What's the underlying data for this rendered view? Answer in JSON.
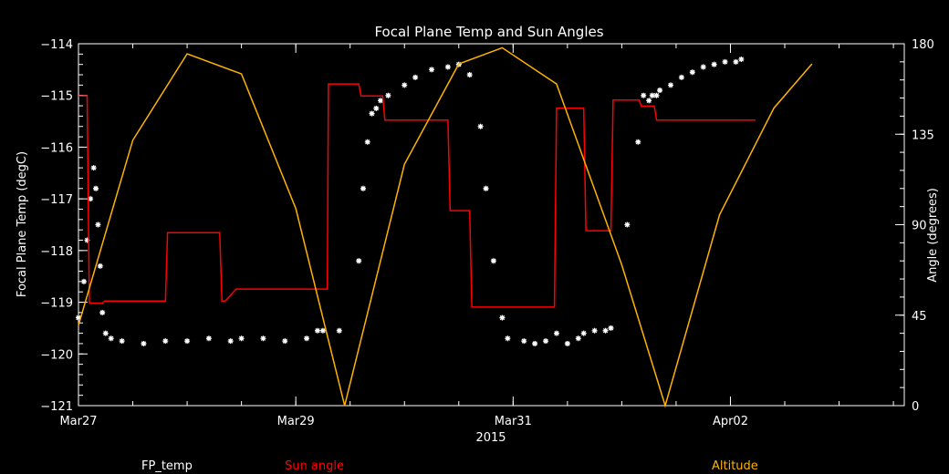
{
  "chart_data": {
    "type": "line",
    "title": "Focal Plane Temp and Sun Angles",
    "xlabel": "2015",
    "ylabel_left": "Focal Plane Temp (degC)",
    "ylabel_right": "Angle (degrees)",
    "x_unit": "days since Mar27 00:00 (2015)",
    "xlim": [
      0,
      7.6
    ],
    "ylim_left": [
      -121,
      -114
    ],
    "ylim_right": [
      0,
      180
    ],
    "x_ticks": [
      {
        "value": 0,
        "label": "Mar27"
      },
      {
        "value": 2,
        "label": "Mar29"
      },
      {
        "value": 4,
        "label": "Mar31"
      },
      {
        "value": 6,
        "label": "Apr02"
      }
    ],
    "y_ticks_left": [
      -114,
      -115,
      -116,
      -117,
      -118,
      -119,
      -120,
      -121
    ],
    "y_tick_labels_left": [
      "−114",
      "−115",
      "−116",
      "−117",
      "−118",
      "−119",
      "−120",
      "−121"
    ],
    "y_ticks_right": [
      0,
      45,
      90,
      135,
      180
    ],
    "y_tick_labels_right": [
      "0",
      "45",
      "90",
      "135",
      "180"
    ],
    "grid": false,
    "legend_position": "bottom",
    "series": [
      {
        "name": "FP_temp",
        "axis": "left",
        "style": "markers",
        "color": "#ffffff",
        "x": [
          0.0,
          0.05,
          0.08,
          0.11,
          0.14,
          0.16,
          0.18,
          0.2,
          0.22,
          0.25,
          0.3,
          0.4,
          0.6,
          0.8,
          1.0,
          1.2,
          1.4,
          1.5,
          1.7,
          1.9,
          2.1,
          2.2,
          2.25,
          2.4,
          2.58,
          2.62,
          2.66,
          2.7,
          2.74,
          2.78,
          2.85,
          3.0,
          3.1,
          3.25,
          3.4,
          3.5,
          3.6,
          3.7,
          3.75,
          3.82,
          3.9,
          3.95,
          4.1,
          4.2,
          4.3,
          4.4,
          4.5,
          4.6,
          4.65,
          4.75,
          4.85,
          4.9,
          5.05,
          5.15,
          5.2,
          5.25,
          5.28,
          5.32,
          5.35,
          5.45,
          5.55,
          5.65,
          5.75,
          5.85,
          5.95,
          6.05,
          6.1
        ],
        "y": [
          -119.3,
          -118.6,
          -117.8,
          -117.0,
          -116.4,
          -116.8,
          -117.5,
          -118.3,
          -119.2,
          -119.6,
          -119.7,
          -119.75,
          -119.8,
          -119.75,
          -119.75,
          -119.7,
          -119.75,
          -119.7,
          -119.7,
          -119.75,
          -119.7,
          -119.55,
          -119.55,
          -119.55,
          -118.2,
          -116.8,
          -115.9,
          -115.35,
          -115.25,
          -115.1,
          -115.0,
          -114.8,
          -114.65,
          -114.5,
          -114.45,
          -114.4,
          -114.6,
          -115.6,
          -116.8,
          -118.2,
          -119.3,
          -119.7,
          -119.75,
          -119.8,
          -119.75,
          -119.6,
          -119.8,
          -119.7,
          -119.6,
          -119.55,
          -119.55,
          -119.5,
          -117.5,
          -115.9,
          -115.0,
          -115.1,
          -115.0,
          -115.0,
          -114.9,
          -114.8,
          -114.65,
          -114.55,
          -114.45,
          -114.4,
          -114.35,
          -114.35,
          -114.3
        ]
      },
      {
        "name": "Sun angle",
        "axis": "right",
        "style": "step",
        "color": "#ff0000",
        "x": [
          0.0,
          0.08,
          0.1,
          0.22,
          0.24,
          0.8,
          0.82,
          1.3,
          1.32,
          1.35,
          1.45,
          1.47,
          2.29,
          2.3,
          2.58,
          2.6,
          2.75,
          2.77,
          2.8,
          2.82,
          3.4,
          3.42,
          3.6,
          3.62,
          4.38,
          4.4,
          4.65,
          4.67,
          4.72,
          4.74,
          4.9,
          4.92,
          5.16,
          5.18,
          5.3,
          5.32,
          6.23
        ],
        "y": [
          154,
          154,
          51,
          51,
          52,
          52,
          86,
          86,
          52,
          52,
          58,
          58,
          58,
          160,
          160,
          154,
          154,
          154,
          154,
          142,
          142,
          97,
          97,
          49,
          49,
          148,
          148,
          87,
          87,
          87,
          87,
          152,
          152,
          149,
          149,
          142,
          142
        ]
      },
      {
        "name": "Altitude",
        "axis": "right",
        "style": "line",
        "color": "#ffb300",
        "x": [
          0.0,
          0.5,
          1.0,
          1.5,
          2.0,
          2.45,
          3.0,
          3.5,
          3.9,
          4.4,
          5.0,
          5.4,
          5.9,
          6.4,
          6.75
        ],
        "y": [
          40,
          132,
          175,
          165,
          98,
          0,
          120,
          170,
          178,
          160,
          70,
          0,
          95,
          148,
          170
        ]
      }
    ]
  }
}
